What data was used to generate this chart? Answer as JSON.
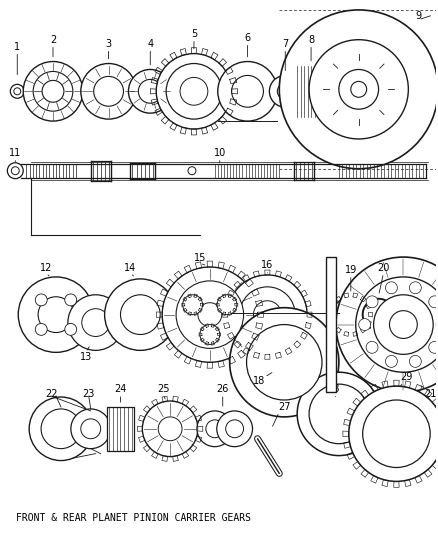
{
  "caption": "FRONT & REAR PLANET PINION CARRIER GEARS",
  "bg_color": "#ffffff",
  "lc": "#1a1a1a",
  "figsize": [
    4.38,
    5.33
  ],
  "dpi": 100
}
